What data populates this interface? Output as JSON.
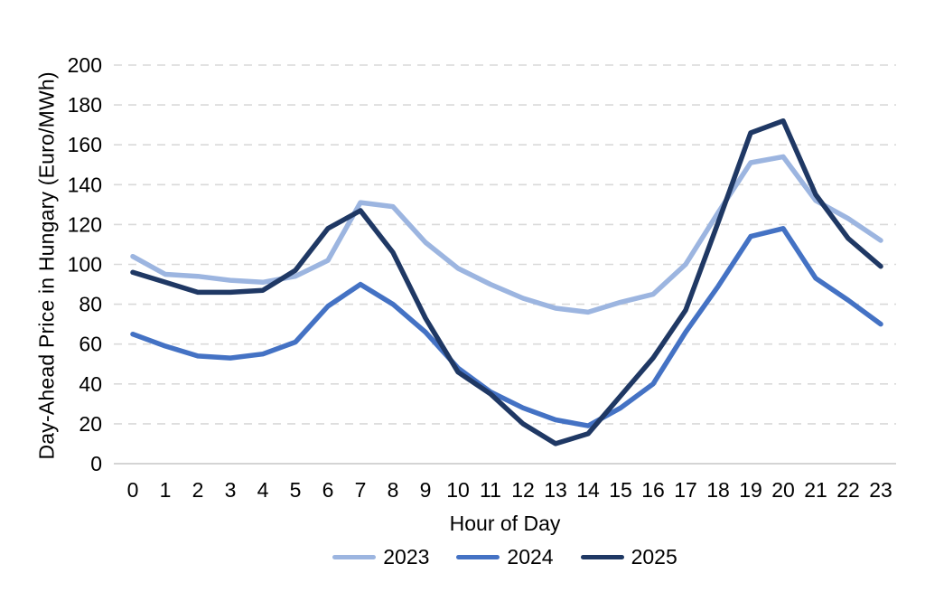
{
  "figure": {
    "y_axis_title": "Day-Ahead Price in Hungary (Euro/MWh)",
    "x_axis_title": "Hour of Day"
  },
  "chart_data": {
    "type": "line",
    "title": "",
    "xlabel": "Hour of Day",
    "ylabel": "Day-Ahead Price in Hungary (Euro/MWh)",
    "x": [
      0,
      1,
      2,
      3,
      4,
      5,
      6,
      7,
      8,
      9,
      10,
      11,
      12,
      13,
      14,
      15,
      16,
      17,
      18,
      19,
      20,
      21,
      22,
      23
    ],
    "series": [
      {
        "name": "2023",
        "color": "#9CB5E0",
        "values": [
          104,
          95,
          94,
          92,
          91,
          94,
          102,
          131,
          129,
          111,
          98,
          90,
          83,
          78,
          76,
          81,
          85,
          100,
          126,
          151,
          154,
          132,
          123,
          112
        ]
      },
      {
        "name": "2024",
        "color": "#4472C4",
        "values": [
          65,
          59,
          54,
          53,
          55,
          61,
          79,
          90,
          80,
          66,
          48,
          36,
          28,
          22,
          19,
          28,
          40,
          66,
          89,
          114,
          118,
          93,
          82,
          70
        ]
      },
      {
        "name": "2025",
        "color": "#1F3864",
        "values": [
          96,
          91,
          86,
          86,
          87,
          97,
          118,
          127,
          106,
          73,
          46,
          35,
          20,
          10,
          15,
          34,
          53,
          77,
          121,
          166,
          172,
          135,
          113,
          99
        ]
      }
    ],
    "ylim": [
      0,
      200
    ],
    "ytick_step": 20,
    "grid": true,
    "grid_style": "dashed",
    "legend_position": "bottom"
  },
  "style": {
    "grid_color": "#D9D9D9",
    "zero_axis_color": "#C6C6C6",
    "tick_label_color": "#000000",
    "background": "#FFFFFF"
  }
}
